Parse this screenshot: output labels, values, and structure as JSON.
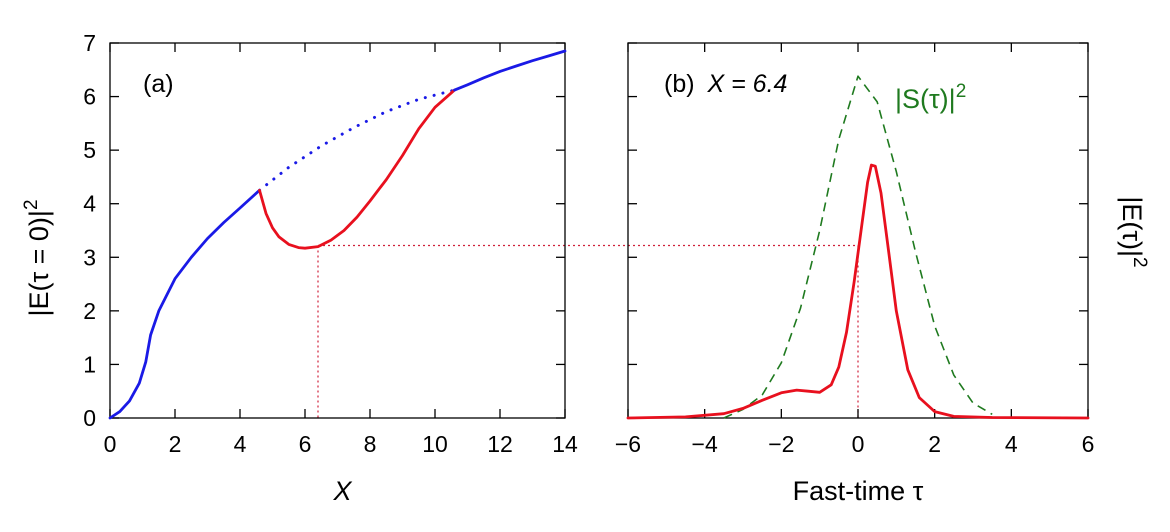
{
  "chart_data": [
    {
      "type": "line",
      "panel_label": "(a)",
      "xlabel": "X",
      "ylabel": "|E(τ = 0)|",
      "ylabel_sup": "2",
      "xlim": [
        0,
        14
      ],
      "ylim": [
        0,
        7
      ],
      "xticks": [
        "0",
        "2",
        "4",
        "6",
        "8",
        "10",
        "12",
        "14"
      ],
      "yticks": [
        "0",
        "1",
        "2",
        "3",
        "4",
        "5",
        "6",
        "7"
      ],
      "colors": {
        "blue": "#1a1ae6",
        "red": "#e8101e",
        "guide": "#d0203a"
      },
      "series": [
        {
          "color": "blue",
          "style": "solid",
          "x": [
            0,
            0.3,
            0.6,
            0.9,
            1.1,
            1.25,
            1.5,
            2.0,
            2.5,
            3.0,
            3.5,
            4.0,
            4.6
          ],
          "y": [
            0.0,
            0.12,
            0.32,
            0.65,
            1.05,
            1.55,
            2.0,
            2.6,
            3.0,
            3.35,
            3.65,
            3.92,
            4.25
          ]
        },
        {
          "color": "blue",
          "style": "dotted",
          "x": [
            4.6,
            5.5,
            6.5,
            7.5,
            8.5,
            9.5,
            10.6
          ],
          "y": [
            4.25,
            4.68,
            5.08,
            5.42,
            5.72,
            5.95,
            6.12
          ]
        },
        {
          "color": "red",
          "style": "solid",
          "x": [
            4.6,
            4.8,
            5.0,
            5.2,
            5.5,
            5.8,
            6.0,
            6.4,
            6.8,
            7.2,
            7.6,
            8.0,
            8.5,
            9.0,
            9.5,
            10.0,
            10.6
          ],
          "y": [
            4.25,
            3.82,
            3.55,
            3.38,
            3.24,
            3.18,
            3.17,
            3.2,
            3.32,
            3.5,
            3.75,
            4.05,
            4.45,
            4.9,
            5.4,
            5.8,
            6.12
          ]
        },
        {
          "color": "blue",
          "style": "solid",
          "x": [
            10.6,
            11.0,
            11.5,
            12.0,
            12.5,
            13.0,
            13.5,
            14.0
          ],
          "y": [
            6.12,
            6.22,
            6.35,
            6.47,
            6.57,
            6.67,
            6.76,
            6.85
          ]
        }
      ],
      "guide_lines": {
        "x": 6.4,
        "y": 3.22
      }
    },
    {
      "type": "line",
      "panel_label": "(b)",
      "annotation": "X = 6.4",
      "curve_label": "|S(τ)|",
      "curve_label_sup": "2",
      "xlabel": "Fast-time τ",
      "ylabel_right": "|E(τ)|",
      "ylabel_right_sup": "2",
      "xlim": [
        -6,
        6
      ],
      "ylim": [
        0,
        7
      ],
      "xticks": [
        "−6",
        "−4",
        "−2",
        "0",
        "2",
        "4",
        "6"
      ],
      "colors": {
        "red": "#e8101e",
        "green": "#1f7a1f",
        "guide": "#d0203a"
      },
      "series": [
        {
          "color": "green",
          "style": "dashed",
          "x": [
            -3.5,
            -3.0,
            -2.5,
            -2.0,
            -1.5,
            -1.0,
            -0.5,
            0.0,
            0.5,
            1.0,
            1.5,
            2.0,
            2.5,
            3.0,
            3.5
          ],
          "y": [
            0.0,
            0.16,
            0.43,
            1.03,
            2.05,
            3.5,
            5.2,
            6.38,
            5.9,
            4.6,
            3.1,
            1.72,
            0.8,
            0.28,
            0.07
          ]
        },
        {
          "color": "red",
          "style": "solid",
          "x": [
            -6.0,
            -4.5,
            -3.5,
            -3.0,
            -2.5,
            -2.0,
            -1.6,
            -1.3,
            -1.0,
            -0.7,
            -0.5,
            -0.3,
            -0.1,
            0.1,
            0.25,
            0.35,
            0.45,
            0.6,
            0.8,
            1.0,
            1.3,
            1.6,
            2.0,
            2.5,
            3.5,
            6.0
          ],
          "y": [
            0.0,
            0.02,
            0.08,
            0.18,
            0.33,
            0.47,
            0.52,
            0.5,
            0.48,
            0.62,
            0.95,
            1.6,
            2.55,
            3.6,
            4.4,
            4.72,
            4.7,
            4.2,
            3.1,
            2.0,
            0.9,
            0.38,
            0.12,
            0.03,
            0.01,
            0.0
          ]
        }
      ],
      "guide_lines": {
        "x": 0.0,
        "y": 3.22
      }
    }
  ]
}
